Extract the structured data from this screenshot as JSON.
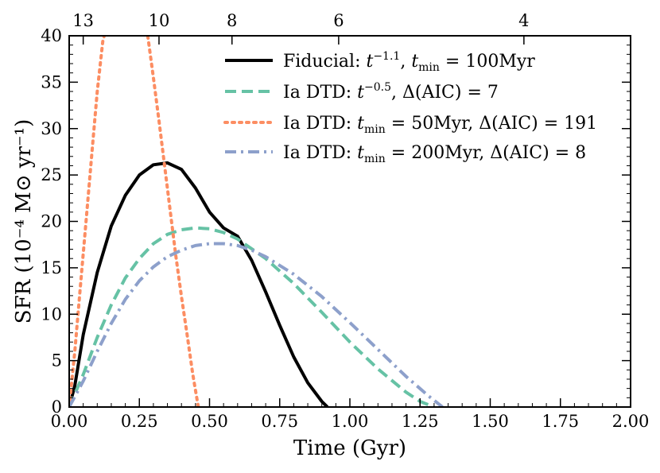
{
  "chart_data": {
    "type": "line",
    "xlabel": "Time (Gyr)",
    "ylabel": "SFR (10⁻⁴ M⊙ yr⁻¹)",
    "xlim": [
      0,
      2.0
    ],
    "ylim": [
      0,
      40
    ],
    "x_ticks": [
      0.0,
      0.25,
      0.5,
      0.75,
      1.0,
      1.25,
      1.5,
      1.75,
      2.0
    ],
    "x_tick_labels": [
      "0.00",
      "0.25",
      "0.50",
      "0.75",
      "1.00",
      "1.25",
      "1.50",
      "1.75",
      "2.00"
    ],
    "y_ticks": [
      0,
      5,
      10,
      15,
      20,
      25,
      30,
      35,
      40
    ],
    "y_tick_labels": [
      "0",
      "5",
      "10",
      "15",
      "20",
      "25",
      "30",
      "35",
      "40"
    ],
    "top_axis": {
      "ticks": [
        {
          "time": 0.05,
          "label": "13"
        },
        {
          "time": 0.32,
          "label": "10"
        },
        {
          "time": 0.58,
          "label": "8"
        },
        {
          "time": 0.96,
          "label": "6"
        },
        {
          "time": 1.62,
          "label": "4"
        }
      ]
    },
    "legend_position": "top-right",
    "series": [
      {
        "name": "Fiducial: t^-1.1, t_min = 100Myr",
        "legend": [
          "Fiducial: ",
          "t",
          "−1.1",
          ", ",
          "t",
          "min",
          " = 100Myr"
        ],
        "color": "#000000",
        "dash": "solid",
        "x": [
          0.0,
          0.02,
          0.05,
          0.1,
          0.15,
          0.2,
          0.25,
          0.3,
          0.35,
          0.4,
          0.45,
          0.5,
          0.55,
          0.6,
          0.65,
          0.7,
          0.75,
          0.8,
          0.85,
          0.9,
          0.92
        ],
        "y": [
          0.0,
          2.3,
          7.8,
          14.5,
          19.5,
          22.8,
          25.0,
          26.1,
          26.3,
          25.6,
          23.6,
          21.0,
          19.3,
          18.4,
          15.8,
          12.4,
          8.8,
          5.4,
          2.6,
          0.6,
          0.0
        ]
      },
      {
        "name": "Ia DTD: t^-0.5, Δ(AIC) = 7",
        "legend": [
          "Ia DTD: ",
          "t",
          "−0.5",
          ", Δ(AIC) = 7"
        ],
        "color": "#66c2a5",
        "dash": "dashed",
        "x": [
          0.0,
          0.05,
          0.1,
          0.15,
          0.2,
          0.25,
          0.3,
          0.35,
          0.4,
          0.45,
          0.5,
          0.55,
          0.6,
          0.7,
          0.8,
          0.9,
          1.0,
          1.1,
          1.2,
          1.25,
          1.3
        ],
        "y": [
          0.0,
          3.5,
          7.5,
          11.0,
          13.9,
          16.0,
          17.6,
          18.6,
          19.1,
          19.3,
          19.2,
          18.8,
          18.1,
          16.0,
          13.3,
          10.2,
          7.0,
          4.1,
          1.6,
          0.6,
          0.0
        ]
      },
      {
        "name": "Ia DTD: t_min = 50Myr, Δ(AIC) = 191",
        "legend": [
          "Ia DTD: ",
          "t",
          "min",
          " = 50Myr, Δ(AIC) = 191"
        ],
        "color": "#fc8d62",
        "dash": "dotted",
        "x": [
          0.0,
          0.02,
          0.04,
          0.06,
          0.08,
          0.1,
          0.12,
          0.125
        ],
        "y": [
          0.0,
          6.0,
          13.0,
          20.0,
          27.0,
          34.0,
          39.5,
          40.0
        ],
        "x2": [
          0.28,
          0.3,
          0.32,
          0.34,
          0.36,
          0.38,
          0.4,
          0.42,
          0.44,
          0.46
        ],
        "y2": [
          40.0,
          35.5,
          30.8,
          26.0,
          21.1,
          16.3,
          11.9,
          7.8,
          3.6,
          0.0
        ]
      },
      {
        "name": "Ia DTD: t_min = 200Myr, Δ(AIC) = 8",
        "legend": [
          "Ia DTD: ",
          "t",
          "min",
          " = 200Myr, Δ(AIC) = 8"
        ],
        "color": "#8da0cb",
        "dash": "dashdot",
        "x": [
          0.0,
          0.05,
          0.1,
          0.15,
          0.2,
          0.25,
          0.3,
          0.35,
          0.4,
          0.45,
          0.5,
          0.55,
          0.6,
          0.65,
          0.7,
          0.8,
          0.9,
          1.0,
          1.1,
          1.2,
          1.28,
          1.33
        ],
        "y": [
          0.0,
          2.8,
          6.0,
          9.0,
          11.6,
          13.6,
          15.1,
          16.2,
          16.9,
          17.4,
          17.6,
          17.6,
          17.4,
          16.9,
          16.2,
          14.3,
          11.9,
          9.1,
          6.2,
          3.3,
          1.2,
          0.0
        ]
      }
    ]
  }
}
